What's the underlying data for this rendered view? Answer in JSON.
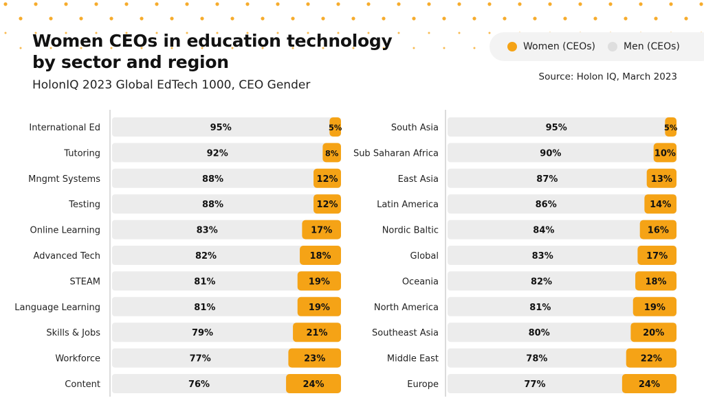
{
  "header": {
    "title_line1": "Women CEOs in education technology",
    "title_line2": "by sector and region",
    "subtitle": "HolonIQ 2023 Global EdTech 1000, CEO Gender",
    "source": "Source: Holon IQ, March 2023"
  },
  "legend": {
    "women_label": "Women (CEOs)",
    "men_label": "Men (CEOs)"
  },
  "colors": {
    "women": "#f5a316",
    "men": "#ececec",
    "dots": "#f5a316"
  },
  "chart_data": [
    {
      "type": "bar",
      "orientation": "horizontal-stacked",
      "title": "",
      "xlabel": "",
      "ylabel": "",
      "value_unit": "%",
      "categories": [
        "International Ed",
        "Tutoring",
        "Mngmt Systems",
        "Testing",
        "Online Learning",
        "Advanced Tech",
        "STEAM",
        "Language Learning",
        "Skills & Jobs",
        "Workforce",
        "Content"
      ],
      "series": [
        {
          "name": "Men (CEOs)",
          "values": [
            95,
            92,
            88,
            88,
            83,
            82,
            81,
            81,
            79,
            77,
            76
          ]
        },
        {
          "name": "Women (CEOs)",
          "values": [
            5,
            8,
            12,
            12,
            17,
            18,
            19,
            19,
            21,
            23,
            24
          ]
        }
      ],
      "xlim": [
        0,
        100
      ]
    },
    {
      "type": "bar",
      "orientation": "horizontal-stacked",
      "title": "",
      "xlabel": "",
      "ylabel": "",
      "value_unit": "%",
      "categories": [
        "South Asia",
        "Sub Saharan Africa",
        "East Asia",
        "Latin America",
        "Nordic Baltic",
        "Global",
        "Oceania",
        "North America",
        "Southeast Asia",
        "Middle East",
        "Europe"
      ],
      "series": [
        {
          "name": "Men (CEOs)",
          "values": [
            95,
            90,
            87,
            86,
            84,
            83,
            82,
            81,
            80,
            78,
            77
          ]
        },
        {
          "name": "Women (CEOs)",
          "values": [
            5,
            10,
            13,
            14,
            16,
            17,
            18,
            19,
            20,
            22,
            24
          ]
        }
      ],
      "xlim": [
        0,
        100
      ]
    }
  ]
}
